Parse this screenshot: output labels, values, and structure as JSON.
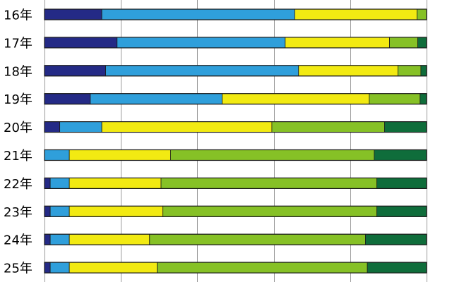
{
  "chart_data": {
    "type": "bar",
    "orientation": "horizontal",
    "stacked": true,
    "normalized": true,
    "categories": [
      "16年",
      "17年",
      "18年",
      "19年",
      "20年",
      "21年",
      "22年",
      "23年",
      "24年",
      "25年"
    ],
    "series": [
      {
        "color": "#242a86",
        "values": [
          15,
          19,
          16,
          12,
          4,
          0,
          1.5,
          1.5,
          1.5,
          1.5
        ]
      },
      {
        "color": "#2f9fdb",
        "values": [
          50.5,
          44,
          50.5,
          34.5,
          11,
          6.5,
          5,
          5,
          5,
          5
        ]
      },
      {
        "color": "#f2ea12",
        "values": [
          32,
          27.3,
          26,
          38.5,
          44.5,
          26.5,
          24,
          24.5,
          21,
          23
        ]
      },
      {
        "color": "#86c126",
        "values": [
          2.5,
          7.4,
          6,
          13.3,
          29.5,
          53.3,
          56.5,
          56,
          56.5,
          55
        ]
      },
      {
        "color": "#0f6d3b",
        "values": [
          0,
          2.3,
          1.5,
          1.7,
          11,
          13.7,
          13,
          13,
          16,
          15.5
        ]
      }
    ],
    "xlim": [
      0,
      100
    ],
    "grid": true
  }
}
